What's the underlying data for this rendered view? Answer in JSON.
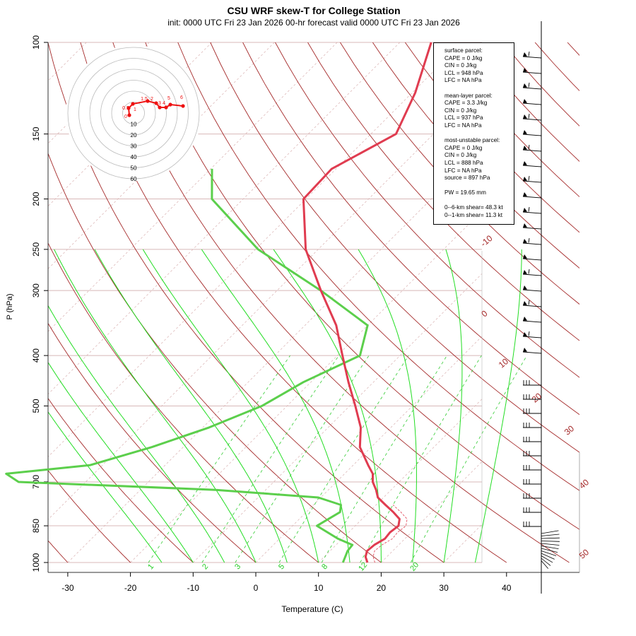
{
  "title": "CSU WRF skew-T for College Station",
  "subtitle": "init: 0000 UTC Fri 23 Jan 2026     00-hr forecast valid 0000 UTC Fri 23 Jan 2026",
  "info": {
    "surface": [
      "surface parcel:",
      "CAPE = 0 J/kg",
      "CIN = 0 J/kg",
      "LCL = 948 hPa",
      "LFC = NA hPa"
    ],
    "mean_layer": [
      "mean-layer parcel:",
      "CAPE = 3.3 J/kg",
      "CIN = 0 J/kg",
      "LCL = 937 hPa",
      "LFC = NA hPa"
    ],
    "most_unstable": [
      "most-unstable parcel:",
      "CAPE = 0 J/kg",
      "CIN = 0 J/kg",
      "LCL = 888 hPa",
      "LFC = NA hPa",
      "source = 897 hPa"
    ],
    "pw": "PW =  19.65 mm",
    "shear": [
      "0--6-km shear= 48.3 kt",
      "0--1-km shear= 11.3 kt"
    ]
  },
  "colors": {
    "temperature": "#e03c50",
    "dewpoint": "#5ccf4c",
    "dry_adiabat": "#a52a2a",
    "moist_adiabat": "#22dd22",
    "mixing_ratio": "#33cc33",
    "isobar": "#d8b8b8",
    "hodograph": "#ee1111"
  },
  "chart_data": {
    "type": "skew-t",
    "xlabel": "Temperature (C)",
    "ylabel": "P (hPa)",
    "xlim": [
      -33,
      45
    ],
    "ylim": [
      1000,
      100
    ],
    "x_ticks": [
      -30,
      -20,
      -10,
      0,
      10,
      20,
      30,
      40
    ],
    "y_ticks": [
      100,
      150,
      200,
      250,
      300,
      400,
      500,
      700,
      850,
      1000
    ],
    "dry_adiabat_labels": [
      "-10",
      "0",
      "10",
      "20",
      "30",
      "40",
      "50"
    ],
    "mixing_ratio_labels": [
      "1",
      "2",
      "3",
      "5",
      "8",
      "12",
      "20"
    ],
    "temperature_profile": [
      {
        "p": 1000,
        "t": 17.8
      },
      {
        "p": 975,
        "t": 16.6
      },
      {
        "p": 950,
        "t": 15.9
      },
      {
        "p": 925,
        "t": 16.1
      },
      {
        "p": 900,
        "t": 16.8
      },
      {
        "p": 875,
        "t": 16.6
      },
      {
        "p": 850,
        "t": 16.9
      },
      {
        "p": 825,
        "t": 16.0
      },
      {
        "p": 800,
        "t": 13.9
      },
      {
        "p": 775,
        "t": 11.5
      },
      {
        "p": 750,
        "t": 9.1
      },
      {
        "p": 725,
        "t": 7.6
      },
      {
        "p": 700,
        "t": 5.8
      },
      {
        "p": 675,
        "t": 4.5
      },
      {
        "p": 650,
        "t": 2.4
      },
      {
        "p": 600,
        "t": -1.8
      },
      {
        "p": 550,
        "t": -4.8
      },
      {
        "p": 500,
        "t": -9.1
      },
      {
        "p": 450,
        "t": -14.0
      },
      {
        "p": 400,
        "t": -19.2
      },
      {
        "p": 350,
        "t": -25.0
      },
      {
        "p": 300,
        "t": -33.0
      },
      {
        "p": 250,
        "t": -42.0
      },
      {
        "p": 200,
        "t": -50.4
      },
      {
        "p": 175,
        "t": -50.7
      },
      {
        "p": 150,
        "t": -46.0
      },
      {
        "p": 125,
        "t": -49.5
      },
      {
        "p": 100,
        "t": -55.0
      }
    ],
    "dewpoint_profile": [
      {
        "p": 1000,
        "t": 13.9
      },
      {
        "p": 950,
        "t": 12.8
      },
      {
        "p": 925,
        "t": 12.6
      },
      {
        "p": 900,
        "t": 9.3
      },
      {
        "p": 850,
        "t": 3.9
      },
      {
        "p": 800,
        "t": 5.4
      },
      {
        "p": 775,
        "t": 4.4
      },
      {
        "p": 750,
        "t": -0.4
      },
      {
        "p": 725,
        "t": -18.0
      },
      {
        "p": 700,
        "t": -50.7
      },
      {
        "p": 675,
        "t": -54.0
      },
      {
        "p": 650,
        "t": -42.0
      },
      {
        "p": 600,
        "t": -35.0
      },
      {
        "p": 550,
        "t": -29.0
      },
      {
        "p": 500,
        "t": -24.0
      },
      {
        "p": 450,
        "t": -21.2
      },
      {
        "p": 400,
        "t": -16.4
      },
      {
        "p": 350,
        "t": -20.0
      },
      {
        "p": 300,
        "t": -33.0
      },
      {
        "p": 250,
        "t": -49.6
      },
      {
        "p": 200,
        "t": -65.0
      },
      {
        "p": 175,
        "t": -69.8
      }
    ],
    "hodograph_rings": [
      10,
      20,
      30,
      40,
      50,
      60
    ],
    "hodograph_point_labels": [
      "0",
      "0.5",
      "1",
      "1.5",
      "2",
      "3",
      "4",
      "5",
      "6"
    ]
  }
}
